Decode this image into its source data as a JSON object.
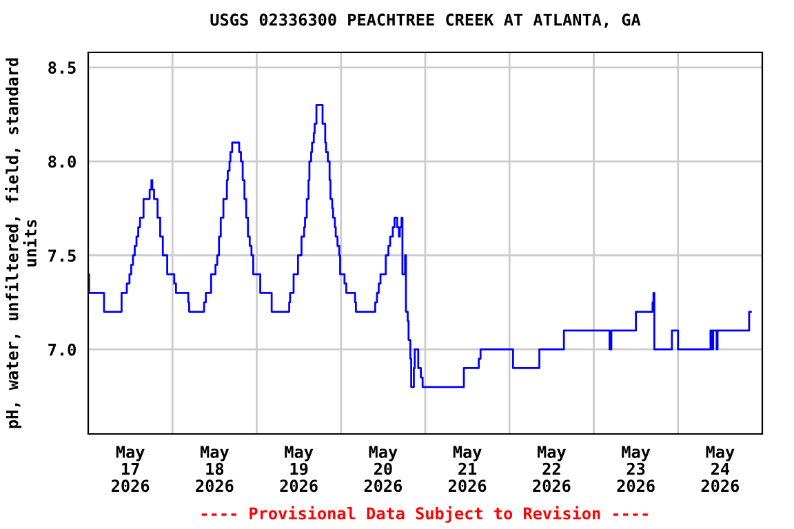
{
  "chart_data": {
    "type": "step",
    "title": "USGS 02336300 PEACHTREE CREEK AT ATLANTA, GA",
    "ylabel": "pH, water, unfiltered, field, standard\nunits",
    "annotations": [
      "---- Provisional Data Subject to Revision ----"
    ],
    "x": [
      "2026-05-17T00:00",
      "2026-05-17T00:15",
      "2026-05-17T04:30",
      "2026-05-17T09:30",
      "2026-05-17T11:00",
      "2026-05-17T11:45",
      "2026-05-17T12:15",
      "2026-05-17T12:45",
      "2026-05-17T13:15",
      "2026-05-17T13:45",
      "2026-05-17T14:15",
      "2026-05-17T14:45",
      "2026-05-17T15:45",
      "2026-05-17T17:30",
      "2026-05-17T18:00",
      "2026-05-17T18:15",
      "2026-05-17T18:45",
      "2026-05-17T19:45",
      "2026-05-17T20:30",
      "2026-05-17T21:15",
      "2026-05-17T22:30",
      "2026-05-18T00:30",
      "2026-05-18T01:00",
      "2026-05-18T04:30",
      "2026-05-18T04:45",
      "2026-05-18T09:00",
      "2026-05-18T09:30",
      "2026-05-18T11:00",
      "2026-05-18T12:15",
      "2026-05-18T12:45",
      "2026-05-18T13:15",
      "2026-05-18T13:45",
      "2026-05-18T14:30",
      "2026-05-18T15:30",
      "2026-05-18T15:45",
      "2026-05-18T16:15",
      "2026-05-18T16:30",
      "2026-05-18T17:00",
      "2026-05-18T19:00",
      "2026-05-18T19:30",
      "2026-05-18T20:00",
      "2026-05-18T20:30",
      "2026-05-18T21:00",
      "2026-05-18T21:30",
      "2026-05-18T22:00",
      "2026-05-18T22:30",
      "2026-05-18T23:00",
      "2026-05-19T01:00",
      "2026-05-19T04:15",
      "2026-05-19T09:15",
      "2026-05-19T09:30",
      "2026-05-19T10:30",
      "2026-05-19T11:45",
      "2026-05-19T12:45",
      "2026-05-19T13:30",
      "2026-05-19T13:45",
      "2026-05-19T14:15",
      "2026-05-19T14:45",
      "2026-05-19T15:00",
      "2026-05-19T15:30",
      "2026-05-19T15:45",
      "2026-05-19T16:15",
      "2026-05-19T16:30",
      "2026-05-19T17:00",
      "2026-05-19T18:45",
      "2026-05-19T19:30",
      "2026-05-19T19:45",
      "2026-05-19T20:15",
      "2026-05-19T20:45",
      "2026-05-19T21:00",
      "2026-05-19T21:30",
      "2026-05-19T21:45",
      "2026-05-19T22:15",
      "2026-05-19T22:30",
      "2026-05-19T23:00",
      "2026-05-19T23:30",
      "2026-05-19T23:45",
      "2026-05-20T01:00",
      "2026-05-20T01:30",
      "2026-05-20T04:00",
      "2026-05-20T04:15",
      "2026-05-20T09:45",
      "2026-05-20T10:15",
      "2026-05-20T10:45",
      "2026-05-20T11:15",
      "2026-05-20T12:45",
      "2026-05-20T13:30",
      "2026-05-20T14:00",
      "2026-05-20T14:45",
      "2026-05-20T15:15",
      "2026-05-20T16:00",
      "2026-05-20T16:30",
      "2026-05-20T16:45",
      "2026-05-20T17:15",
      "2026-05-20T17:30",
      "2026-05-20T18:15",
      "2026-05-20T18:30",
      "2026-05-20T19:00",
      "2026-05-20T19:15",
      "2026-05-20T19:45",
      "2026-05-20T20:00",
      "2026-05-20T20:45",
      "2026-05-20T21:00",
      "2026-05-20T22:00",
      "2026-05-20T22:45",
      "2026-05-20T23:15",
      "2026-05-21T11:00",
      "2026-05-21T15:15",
      "2026-05-21T15:45",
      "2026-05-22T01:00",
      "2026-05-22T08:30",
      "2026-05-22T15:30",
      "2026-05-23T04:30",
      "2026-05-23T05:00",
      "2026-05-23T12:00",
      "2026-05-23T16:45",
      "2026-05-23T17:00",
      "2026-05-23T17:15",
      "2026-05-23T22:15",
      "2026-05-24T00:00",
      "2026-05-24T09:15",
      "2026-05-24T09:45",
      "2026-05-24T10:00",
      "2026-05-24T11:00",
      "2026-05-24T11:15",
      "2026-05-24T20:15",
      "2026-05-24T20:45"
    ],
    "series": [
      {
        "color": "#0000ff",
        "values": [
          7.4,
          7.3,
          7.2,
          7.3,
          7.35,
          7.4,
          7.45,
          7.5,
          7.55,
          7.6,
          7.65,
          7.7,
          7.8,
          7.85,
          7.9,
          7.85,
          7.8,
          7.7,
          7.6,
          7.5,
          7.4,
          7.35,
          7.3,
          7.25,
          7.2,
          7.25,
          7.3,
          7.4,
          7.45,
          7.5,
          7.6,
          7.7,
          7.8,
          7.9,
          7.95,
          8.0,
          8.05,
          8.1,
          8.05,
          8.0,
          7.9,
          7.8,
          7.7,
          7.6,
          7.55,
          7.5,
          7.4,
          7.3,
          7.2,
          7.25,
          7.3,
          7.4,
          7.5,
          7.6,
          7.65,
          7.7,
          7.8,
          7.9,
          8.0,
          8.05,
          8.1,
          8.15,
          8.2,
          8.3,
          8.2,
          8.1,
          8.05,
          8.0,
          7.9,
          7.8,
          7.75,
          7.7,
          7.65,
          7.6,
          7.55,
          7.5,
          7.4,
          7.35,
          7.3,
          7.25,
          7.2,
          7.25,
          7.3,
          7.35,
          7.4,
          7.5,
          7.55,
          7.6,
          7.65,
          7.7,
          7.65,
          7.6,
          7.65,
          7.7,
          7.4,
          7.5,
          7.2,
          7.15,
          7.05,
          6.95,
          6.8,
          6.9,
          7.0,
          6.9,
          6.85,
          6.8,
          6.9,
          6.95,
          7.0,
          6.9,
          7.0,
          7.1,
          7.0,
          7.1,
          7.2,
          7.25,
          7.3,
          7.0,
          7.1,
          7.0,
          7.1,
          7.0,
          7.1,
          7.0,
          7.1,
          7.2,
          7.2
        ]
      }
    ],
    "xlim": [
      "2026-05-17T00:00",
      "2026-05-25T00:00"
    ],
    "xticks": [
      {
        "value": "2026-05-17T12:00",
        "label": "May\n17\n2026"
      },
      {
        "value": "2026-05-18T12:00",
        "label": "May\n18\n2026"
      },
      {
        "value": "2026-05-19T12:00",
        "label": "May\n19\n2026"
      },
      {
        "value": "2026-05-20T12:00",
        "label": "May\n20\n2026"
      },
      {
        "value": "2026-05-21T12:00",
        "label": "May\n21\n2026"
      },
      {
        "value": "2026-05-22T12:00",
        "label": "May\n22\n2026"
      },
      {
        "value": "2026-05-23T12:00",
        "label": "May\n23\n2026"
      },
      {
        "value": "2026-05-24T12:00",
        "label": "May\n24\n2026"
      },
      {
        "value": "2026-05-18T00:00",
        "label": null
      },
      {
        "value": "2026-05-19T00:00",
        "label": null
      },
      {
        "value": "2026-05-20T00:00",
        "label": null
      },
      {
        "value": "2026-05-21T00:00",
        "label": null
      },
      {
        "value": "2026-05-22T00:00",
        "label": null
      },
      {
        "value": "2026-05-23T00:00",
        "label": null
      },
      {
        "value": "2026-05-24T00:00",
        "label": null
      }
    ],
    "ylim": [
      6.55,
      8.58
    ],
    "yticks": [
      {
        "value": 7.0,
        "label": "7.0"
      },
      {
        "value": 7.5,
        "label": "7.5"
      },
      {
        "value": 8.0,
        "label": "8.0"
      },
      {
        "value": 8.5,
        "label": "8.5"
      }
    ],
    "grid": true
  }
}
